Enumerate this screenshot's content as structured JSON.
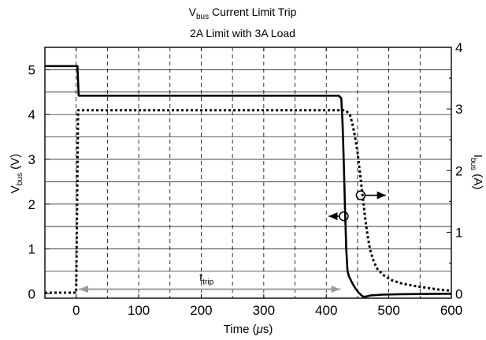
{
  "chart_data": {
    "type": "line",
    "title": {
      "main": "V",
      "sub": "bus",
      "rest": " Current Limit Trip"
    },
    "subtitle": "2A Limit with 3A Load",
    "xlabel": {
      "pre": "Time (",
      "greek": "μ",
      "post": "s)"
    },
    "ylabel_left": {
      "main": "V",
      "sub": "bus",
      "rest": " (V)"
    },
    "ylabel_right": {
      "main": "I",
      "sub": "bus",
      "rest": " (A)"
    },
    "xlim": [
      -50,
      600
    ],
    "ylim_left": [
      -0.1,
      5.5
    ],
    "ylim_right": [
      -0.07,
      4
    ],
    "x_ticks": [
      0,
      100,
      200,
      300,
      400,
      500,
      600
    ],
    "x_tick_labels": [
      "0",
      "100",
      "200",
      "300",
      "400",
      "500",
      "600"
    ],
    "x_grid": [
      0,
      50,
      100,
      150,
      200,
      250,
      300,
      350,
      400,
      450,
      500,
      550
    ],
    "y_left_ticks": [
      0,
      1,
      2,
      3,
      4,
      5
    ],
    "y_left_tick_labels": [
      "0",
      "1",
      "2",
      "3",
      "4",
      "5"
    ],
    "y_left_grid": [
      0.5,
      1,
      1.5,
      2,
      2.5,
      3,
      3.5,
      4,
      4.5,
      5
    ],
    "y_right_ticks": [
      0,
      1,
      2,
      3,
      4
    ],
    "y_right_tick_labels": [
      "0",
      "1",
      "2",
      "3",
      "4"
    ],
    "grid": true,
    "series": [
      {
        "axis": "left",
        "style": "solid",
        "color": "#000000",
        "points": [
          [
            -50,
            5.08
          ],
          [
            2,
            5.08
          ],
          [
            4,
            4.42
          ],
          [
            420,
            4.42
          ],
          [
            424,
            4.36
          ],
          [
            426,
            3.8
          ],
          [
            428,
            2.9
          ],
          [
            430,
            1.9
          ],
          [
            432,
            1.0
          ],
          [
            434,
            0.5
          ],
          [
            436,
            0.4
          ],
          [
            441,
            0.25
          ],
          [
            446,
            0.13
          ],
          [
            452,
            0.02
          ],
          [
            458,
            -0.06
          ],
          [
            462,
            -0.07
          ],
          [
            470,
            -0.04
          ],
          [
            490,
            -0.02
          ],
          [
            520,
            -0.01
          ],
          [
            600,
            0
          ]
        ]
      },
      {
        "axis": "right",
        "style": "dotted",
        "color": "#000000",
        "points": [
          [
            -50,
            0.02
          ],
          [
            0,
            0.02
          ],
          [
            3,
            2.98
          ],
          [
            428,
            2.98
          ],
          [
            432,
            2.97
          ],
          [
            438,
            2.9
          ],
          [
            442,
            2.75
          ],
          [
            446,
            2.55
          ],
          [
            450,
            2.3
          ],
          [
            454,
            1.95
          ],
          [
            458,
            1.6
          ],
          [
            462,
            1.25
          ],
          [
            466,
            0.95
          ],
          [
            470,
            0.72
          ],
          [
            476,
            0.52
          ],
          [
            482,
            0.4
          ],
          [
            492,
            0.3
          ],
          [
            505,
            0.22
          ],
          [
            520,
            0.17
          ],
          [
            540,
            0.13
          ],
          [
            560,
            0.1
          ],
          [
            580,
            0.07
          ],
          [
            600,
            0.05
          ]
        ]
      }
    ],
    "annotations": {
      "trip_label": {
        "main": "t",
        "sub": "trip"
      },
      "trip_span": [
        3,
        424
      ],
      "trip_arrow_y": 0.1,
      "trip_arrow_color": "#9a9a9a",
      "left_marker": {
        "x": 428,
        "y": 1.73,
        "axis": "left",
        "arrow_to_x": 404
      },
      "right_marker": {
        "x": 455,
        "y": 1.6,
        "axis": "right",
        "arrow_to_x": 495
      }
    }
  }
}
